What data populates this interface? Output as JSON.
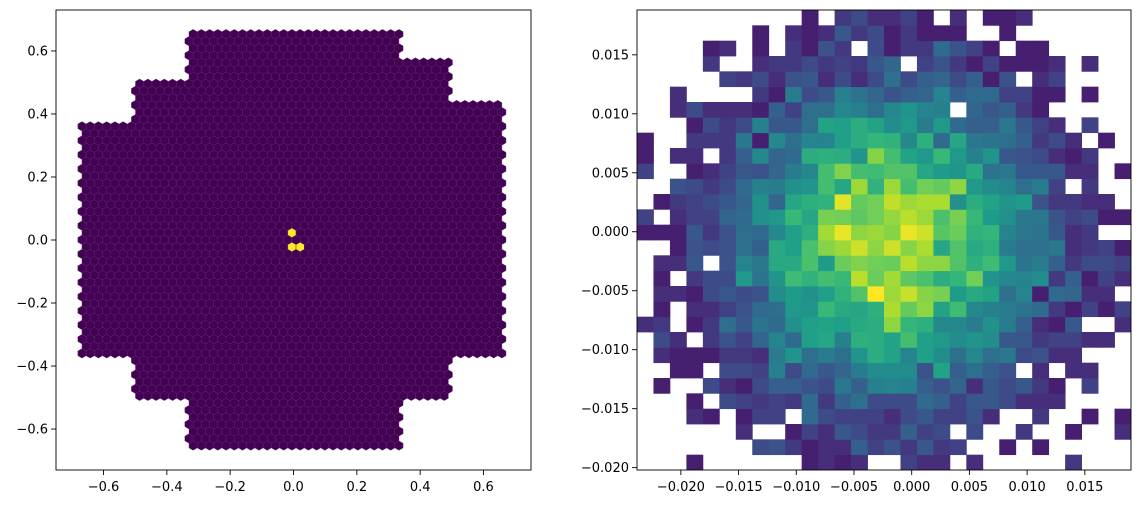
{
  "chart_data": [
    {
      "type": "heatmap",
      "subtype": "hexbin",
      "title": "",
      "xlabel": "",
      "ylabel": "",
      "xlim": [
        -0.75,
        0.75
      ],
      "ylim": [
        -0.73,
        0.73
      ],
      "xticks": [
        -0.6,
        -0.4,
        -0.2,
        0.0,
        0.2,
        0.4,
        0.6
      ],
      "xtick_labels": [
        "−0.6",
        "−0.4",
        "−0.2",
        "0.0",
        "0.2",
        "0.4",
        "0.6"
      ],
      "yticks": [
        -0.6,
        -0.4,
        -0.2,
        0.0,
        0.2,
        0.4,
        0.6
      ],
      "ytick_labels": [
        "−0.6",
        "−0.4",
        "−0.2",
        "0.0",
        "0.2",
        "0.4",
        "0.6"
      ],
      "grid": false,
      "colormap": "viridis",
      "background_color": "#440154",
      "hot_cells": [
        {
          "x": -0.008,
          "y": 0.018,
          "value": 1.0
        },
        {
          "x": 0.008,
          "y": -0.018,
          "value": 1.0
        }
      ],
      "hex_cell_size": 0.026,
      "footprint_outline": [
        [
          -0.34,
          0.67
        ],
        [
          0.34,
          0.67
        ],
        [
          0.34,
          0.57
        ],
        [
          0.5,
          0.57
        ],
        [
          0.5,
          0.44
        ],
        [
          0.67,
          0.44
        ],
        [
          0.67,
          -0.37
        ],
        [
          0.5,
          -0.37
        ],
        [
          0.5,
          -0.5
        ],
        [
          0.34,
          -0.5
        ],
        [
          0.34,
          -0.67
        ],
        [
          -0.34,
          -0.67
        ],
        [
          -0.34,
          -0.5
        ],
        [
          -0.5,
          -0.5
        ],
        [
          -0.5,
          -0.37
        ],
        [
          -0.67,
          -0.37
        ],
        [
          -0.67,
          0.37
        ],
        [
          -0.5,
          0.37
        ],
        [
          -0.5,
          0.5
        ],
        [
          -0.34,
          0.5
        ]
      ]
    },
    {
      "type": "heatmap",
      "subtype": "hist2d",
      "title": "",
      "xlabel": "",
      "ylabel": "",
      "xlim": [
        -0.0238,
        0.019
      ],
      "ylim": [
        -0.0202,
        0.0188
      ],
      "xticks": [
        -0.02,
        -0.015,
        -0.01,
        -0.005,
        0.0,
        0.005,
        0.01,
        0.015
      ],
      "xtick_labels": [
        "−0.020",
        "−0.015",
        "−0.010",
        "−0.005",
        "0.000",
        "0.005",
        "0.010",
        "0.015"
      ],
      "yticks": [
        -0.02,
        -0.015,
        -0.01,
        -0.005,
        0.0,
        0.005,
        0.01,
        0.015
      ],
      "ytick_labels": [
        "−0.020",
        "−0.015",
        "−0.010",
        "−0.005",
        "0.000",
        "0.005",
        "0.010",
        "0.015"
      ],
      "grid": false,
      "colormap": "viridis",
      "bins": 30,
      "distribution": "2D Gaussian centred at (-0.002, -0.001), sigma ≈ 0.0072",
      "center": [
        -0.002,
        -0.001
      ],
      "sigma": 0.0072
    }
  ],
  "colors": {
    "viridis_low": "#440154",
    "viridis_mid": "#21918c",
    "viridis_high": "#fde725",
    "axes_edge": "#000000"
  }
}
